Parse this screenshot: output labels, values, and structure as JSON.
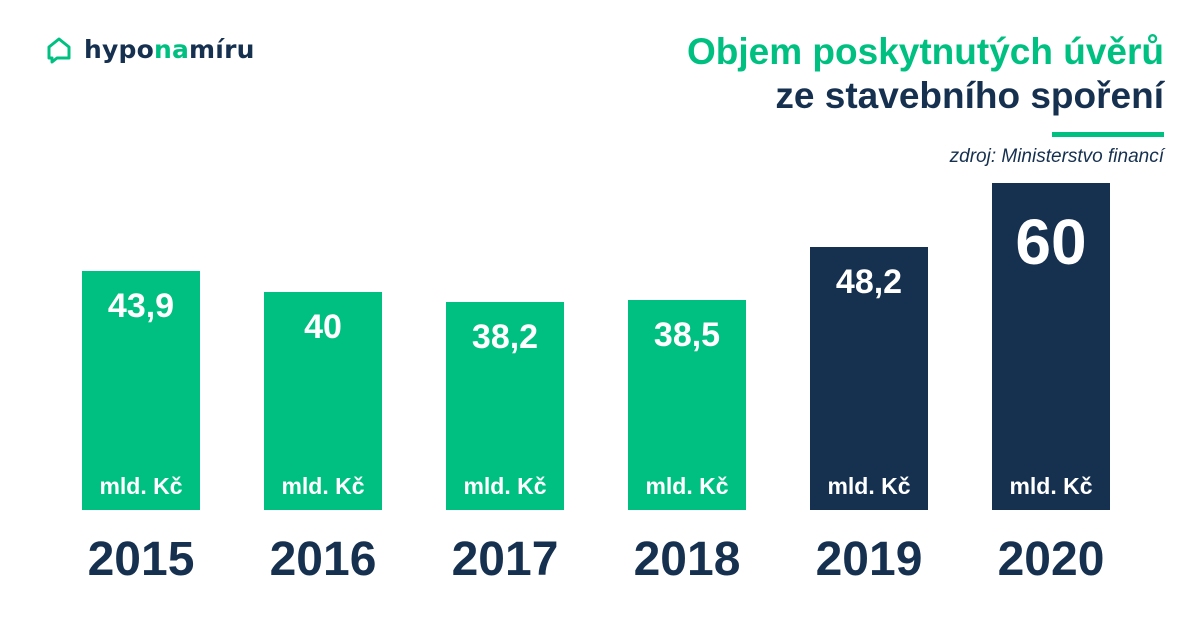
{
  "brand": {
    "name_part1": "hypo",
    "name_part2": "na",
    "name_part3": "míru",
    "icon": "house-chat-icon",
    "colors": {
      "green": "#00c081",
      "navy": "#163050"
    }
  },
  "header": {
    "title_line1": "Objem poskytnutých úvěrů",
    "title_line2": "ze stavebního spoření",
    "source": "zdroj: Ministerstvo financí"
  },
  "chart_data": {
    "type": "bar",
    "title": "Objem poskytnutých úvěrů ze stavebního spoření",
    "categories": [
      "2015",
      "2016",
      "2017",
      "2018",
      "2019",
      "2020"
    ],
    "values": [
      43.9,
      40,
      38.2,
      38.5,
      48.2,
      60
    ],
    "value_labels": [
      "43,9",
      "40",
      "38,2",
      "38,5",
      "48,2",
      "60"
    ],
    "unit_label": "mld. Kč",
    "bar_colors": [
      "#00c081",
      "#00c081",
      "#00c081",
      "#00c081",
      "#163050",
      "#163050"
    ],
    "xlabel": "",
    "ylabel": "",
    "ylim": [
      0,
      60
    ],
    "grid": false,
    "legend": "none"
  }
}
